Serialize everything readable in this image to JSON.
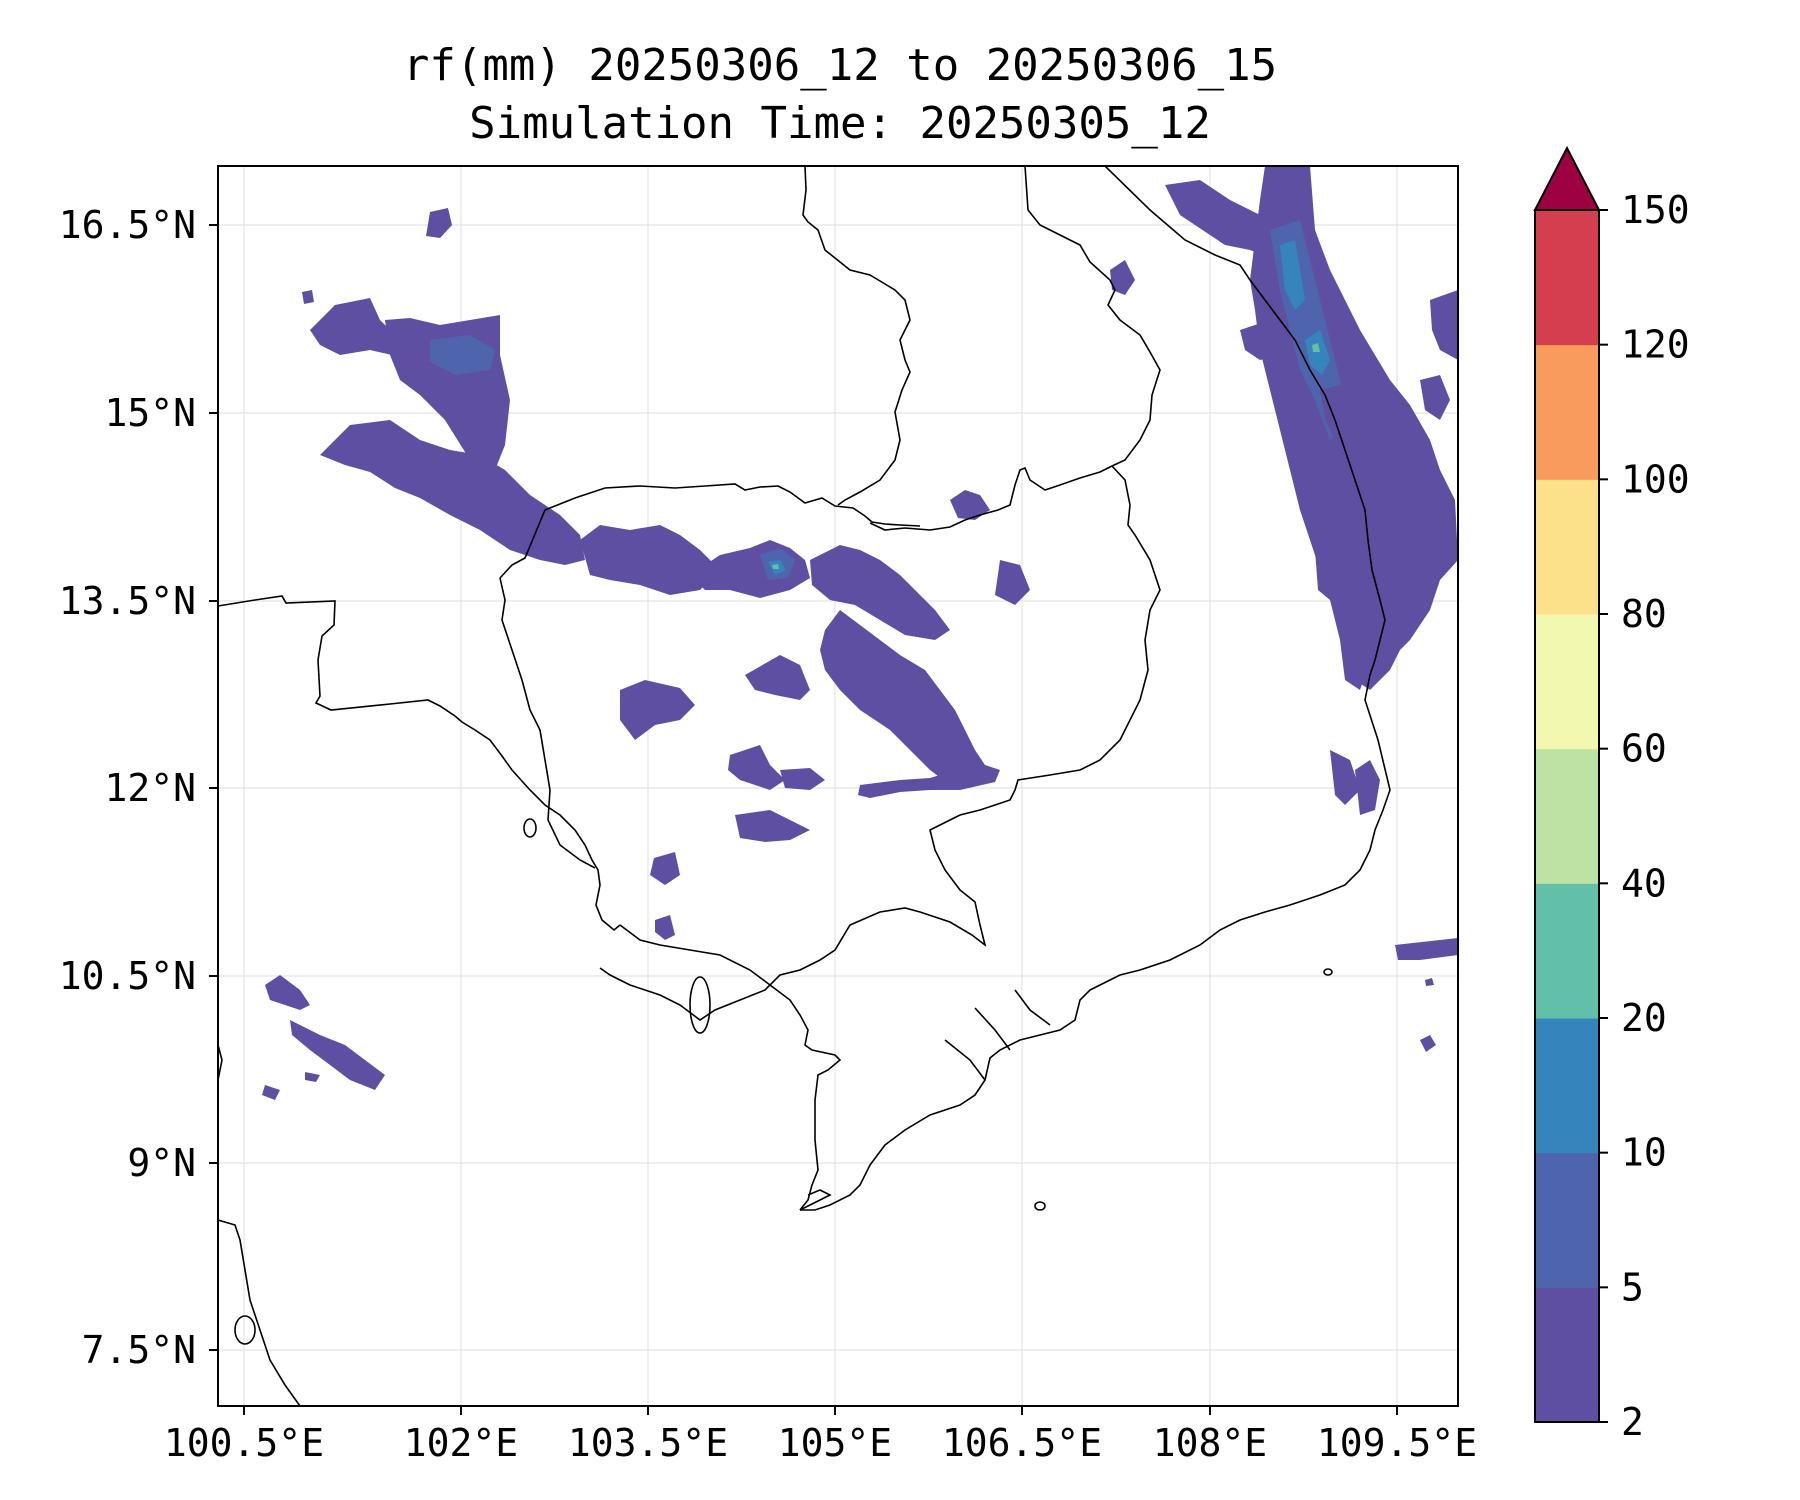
{
  "title": {
    "line1": "rf(mm) 20250306_12 to 20250306_15",
    "line2": "Simulation Time: 20250305_12"
  },
  "axes": {
    "lon_ticks": [
      "100.5°E",
      "102°E",
      "103.5°E",
      "105°E",
      "106.5°E",
      "108°E",
      "109.5°E"
    ],
    "lat_ticks": [
      "16.5°N",
      "15°N",
      "13.5°N",
      "12°N",
      "10.5°N",
      "9°N",
      "7.5°N"
    ]
  },
  "colorbar": {
    "levels": [
      "2",
      "5",
      "10",
      "20",
      "40",
      "60",
      "80",
      "100",
      "120",
      "150"
    ],
    "colors": [
      "#5e4fa2",
      "#4e65ad",
      "#3584bb",
      "#62bfa8",
      "#bde3a4",
      "#f2f8b0",
      "#fde08a",
      "#f99b5d",
      "#d53e4f"
    ],
    "extend_color": "#9e0142"
  },
  "map": {
    "rain_color": "#5e4fa2",
    "rain_color_mid": "#4e65ad",
    "rain_color_heavy": "#3584bb",
    "rain_color_peak": "#62bfa8",
    "grid": true
  }
}
